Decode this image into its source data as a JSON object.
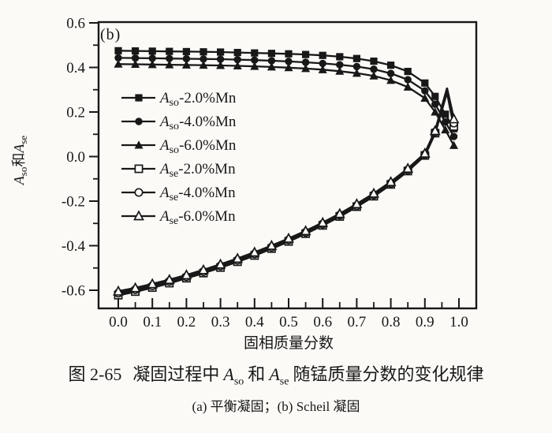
{
  "page": {
    "background": "#fbfaf7",
    "ink": "#181818"
  },
  "figure": {
    "panel_label": "(b)",
    "caption": {
      "fig_no": "图 2-65",
      "part1": "凝固过程中",
      "var1_base": "A",
      "var1_sub": "so",
      "part2": "和",
      "var2_base": "A",
      "var2_sub": "se",
      "part3": "随锰质量分数的变化规律"
    },
    "subcaption": "(a) 平衡凝固；(b) Scheil 凝固"
  },
  "chart_data": {
    "type": "line",
    "title": "",
    "xlabel": "固相质量分数",
    "ylabel": "Aso和Ase",
    "ylabel_parts": {
      "base1": "A",
      "sub1": "so",
      "mid": "和",
      "base2": "A",
      "sub2": "se"
    },
    "xlim": [
      -0.05,
      1.05
    ],
    "ylim": [
      -0.68,
      0.6
    ],
    "grid": false,
    "legend_position": "inside upper-left",
    "x_major_ticks": [
      0.0,
      0.1,
      0.2,
      0.3,
      0.4,
      0.5,
      0.6,
      0.7,
      0.8,
      0.9,
      1.0
    ],
    "x_tick_labels": [
      "0.0",
      "0.1",
      "0.2",
      "0.3",
      "0.4",
      "0.5",
      "0.6",
      "0.7",
      "0.8",
      "0.9",
      "1.0"
    ],
    "x_minor_ticks": [
      0.05,
      0.15,
      0.25,
      0.35,
      0.45,
      0.55,
      0.65,
      0.75,
      0.85,
      0.95
    ],
    "y_major_ticks": [
      0.6,
      0.4,
      0.2,
      0.0,
      -0.2,
      -0.4,
      -0.6
    ],
    "y_tick_labels": [
      "0.6",
      "0.4",
      "0.2",
      "0.0",
      "-0.2",
      "-0.4",
      "-0.6"
    ],
    "y_minor_ticks": [
      0.5,
      0.3,
      0.1,
      -0.1,
      -0.3,
      -0.5
    ],
    "series": [
      {
        "name": "Aso-2.0%Mn",
        "label": {
          "base": "A",
          "sub": "so",
          "rest": "-2.0%Mn"
        },
        "marker": "square-filled",
        "x": [
          0,
          0.05,
          0.1,
          0.15,
          0.2,
          0.25,
          0.3,
          0.35,
          0.4,
          0.45,
          0.5,
          0.55,
          0.6,
          0.65,
          0.7,
          0.75,
          0.8,
          0.85,
          0.9,
          0.93,
          0.96,
          0.985
        ],
        "y": [
          0.475,
          0.474,
          0.473,
          0.472,
          0.471,
          0.47,
          0.469,
          0.467,
          0.465,
          0.463,
          0.461,
          0.458,
          0.454,
          0.448,
          0.44,
          0.428,
          0.41,
          0.382,
          0.33,
          0.27,
          0.19,
          0.125
        ],
        "skip_marker_at": []
      },
      {
        "name": "Aso-4.0%Mn",
        "label": {
          "base": "A",
          "sub": "so",
          "rest": "-4.0%Mn"
        },
        "marker": "circle-filled",
        "x": [
          0,
          0.05,
          0.1,
          0.15,
          0.2,
          0.25,
          0.3,
          0.35,
          0.4,
          0.45,
          0.5,
          0.55,
          0.6,
          0.65,
          0.7,
          0.75,
          0.8,
          0.85,
          0.9,
          0.93,
          0.96,
          0.985
        ],
        "y": [
          0.443,
          0.442,
          0.441,
          0.44,
          0.439,
          0.438,
          0.437,
          0.435,
          0.433,
          0.43,
          0.427,
          0.423,
          0.418,
          0.412,
          0.404,
          0.392,
          0.373,
          0.345,
          0.295,
          0.235,
          0.155,
          0.09
        ],
        "skip_marker_at": []
      },
      {
        "name": "Aso-6.0%Mn",
        "label": {
          "base": "A",
          "sub": "so",
          "rest": "-6.0%Mn"
        },
        "marker": "triangle-filled",
        "x": [
          0,
          0.05,
          0.1,
          0.15,
          0.2,
          0.25,
          0.3,
          0.35,
          0.4,
          0.45,
          0.5,
          0.55,
          0.6,
          0.65,
          0.7,
          0.75,
          0.8,
          0.85,
          0.9,
          0.93,
          0.96,
          0.985
        ],
        "y": [
          0.415,
          0.414,
          0.413,
          0.412,
          0.411,
          0.41,
          0.409,
          0.407,
          0.405,
          0.402,
          0.399,
          0.395,
          0.39,
          0.383,
          0.374,
          0.362,
          0.342,
          0.312,
          0.262,
          0.2,
          0.12,
          0.05
        ],
        "skip_marker_at": []
      },
      {
        "name": "Ase-2.0%Mn",
        "label": {
          "base": "A",
          "sub": "se",
          "rest": "-2.0%Mn"
        },
        "marker": "square-open",
        "x": [
          0,
          0.05,
          0.1,
          0.15,
          0.2,
          0.25,
          0.3,
          0.35,
          0.4,
          0.45,
          0.5,
          0.55,
          0.6,
          0.65,
          0.7,
          0.75,
          0.8,
          0.85,
          0.9,
          0.93,
          0.965,
          0.985
        ],
        "y": [
          -0.622,
          -0.606,
          -0.588,
          -0.568,
          -0.546,
          -0.523,
          -0.498,
          -0.472,
          -0.444,
          -0.413,
          -0.381,
          -0.346,
          -0.309,
          -0.269,
          -0.225,
          -0.178,
          -0.125,
          -0.065,
          0.005,
          0.105,
          0.29,
          0.135
        ],
        "skip_marker_at": [
          20
        ]
      },
      {
        "name": "Ase-4.0%Mn",
        "label": {
          "base": "A",
          "sub": "se",
          "rest": "-4.0%Mn"
        },
        "marker": "circle-open",
        "x": [
          0,
          0.05,
          0.1,
          0.15,
          0.2,
          0.25,
          0.3,
          0.35,
          0.4,
          0.45,
          0.5,
          0.55,
          0.6,
          0.65,
          0.7,
          0.75,
          0.8,
          0.85,
          0.9,
          0.93,
          0.965,
          0.985
        ],
        "y": [
          -0.613,
          -0.597,
          -0.58,
          -0.56,
          -0.539,
          -0.516,
          -0.491,
          -0.465,
          -0.437,
          -0.407,
          -0.374,
          -0.34,
          -0.303,
          -0.263,
          -0.22,
          -0.172,
          -0.12,
          -0.06,
          0.009,
          0.11,
          0.298,
          0.15
        ],
        "skip_marker_at": [
          20
        ]
      },
      {
        "name": "Ase-6.0%Mn",
        "label": {
          "base": "A",
          "sub": "se",
          "rest": "-6.0%Mn"
        },
        "marker": "triangle-open",
        "x": [
          0,
          0.05,
          0.1,
          0.15,
          0.2,
          0.25,
          0.3,
          0.35,
          0.4,
          0.45,
          0.5,
          0.55,
          0.6,
          0.65,
          0.7,
          0.75,
          0.8,
          0.85,
          0.9,
          0.93,
          0.965,
          0.985
        ],
        "y": [
          -0.605,
          -0.59,
          -0.572,
          -0.553,
          -0.532,
          -0.509,
          -0.484,
          -0.458,
          -0.43,
          -0.4,
          -0.368,
          -0.334,
          -0.297,
          -0.257,
          -0.213,
          -0.166,
          -0.114,
          -0.054,
          0.014,
          0.115,
          0.305,
          0.168
        ],
        "skip_marker_at": [
          20
        ]
      }
    ]
  }
}
